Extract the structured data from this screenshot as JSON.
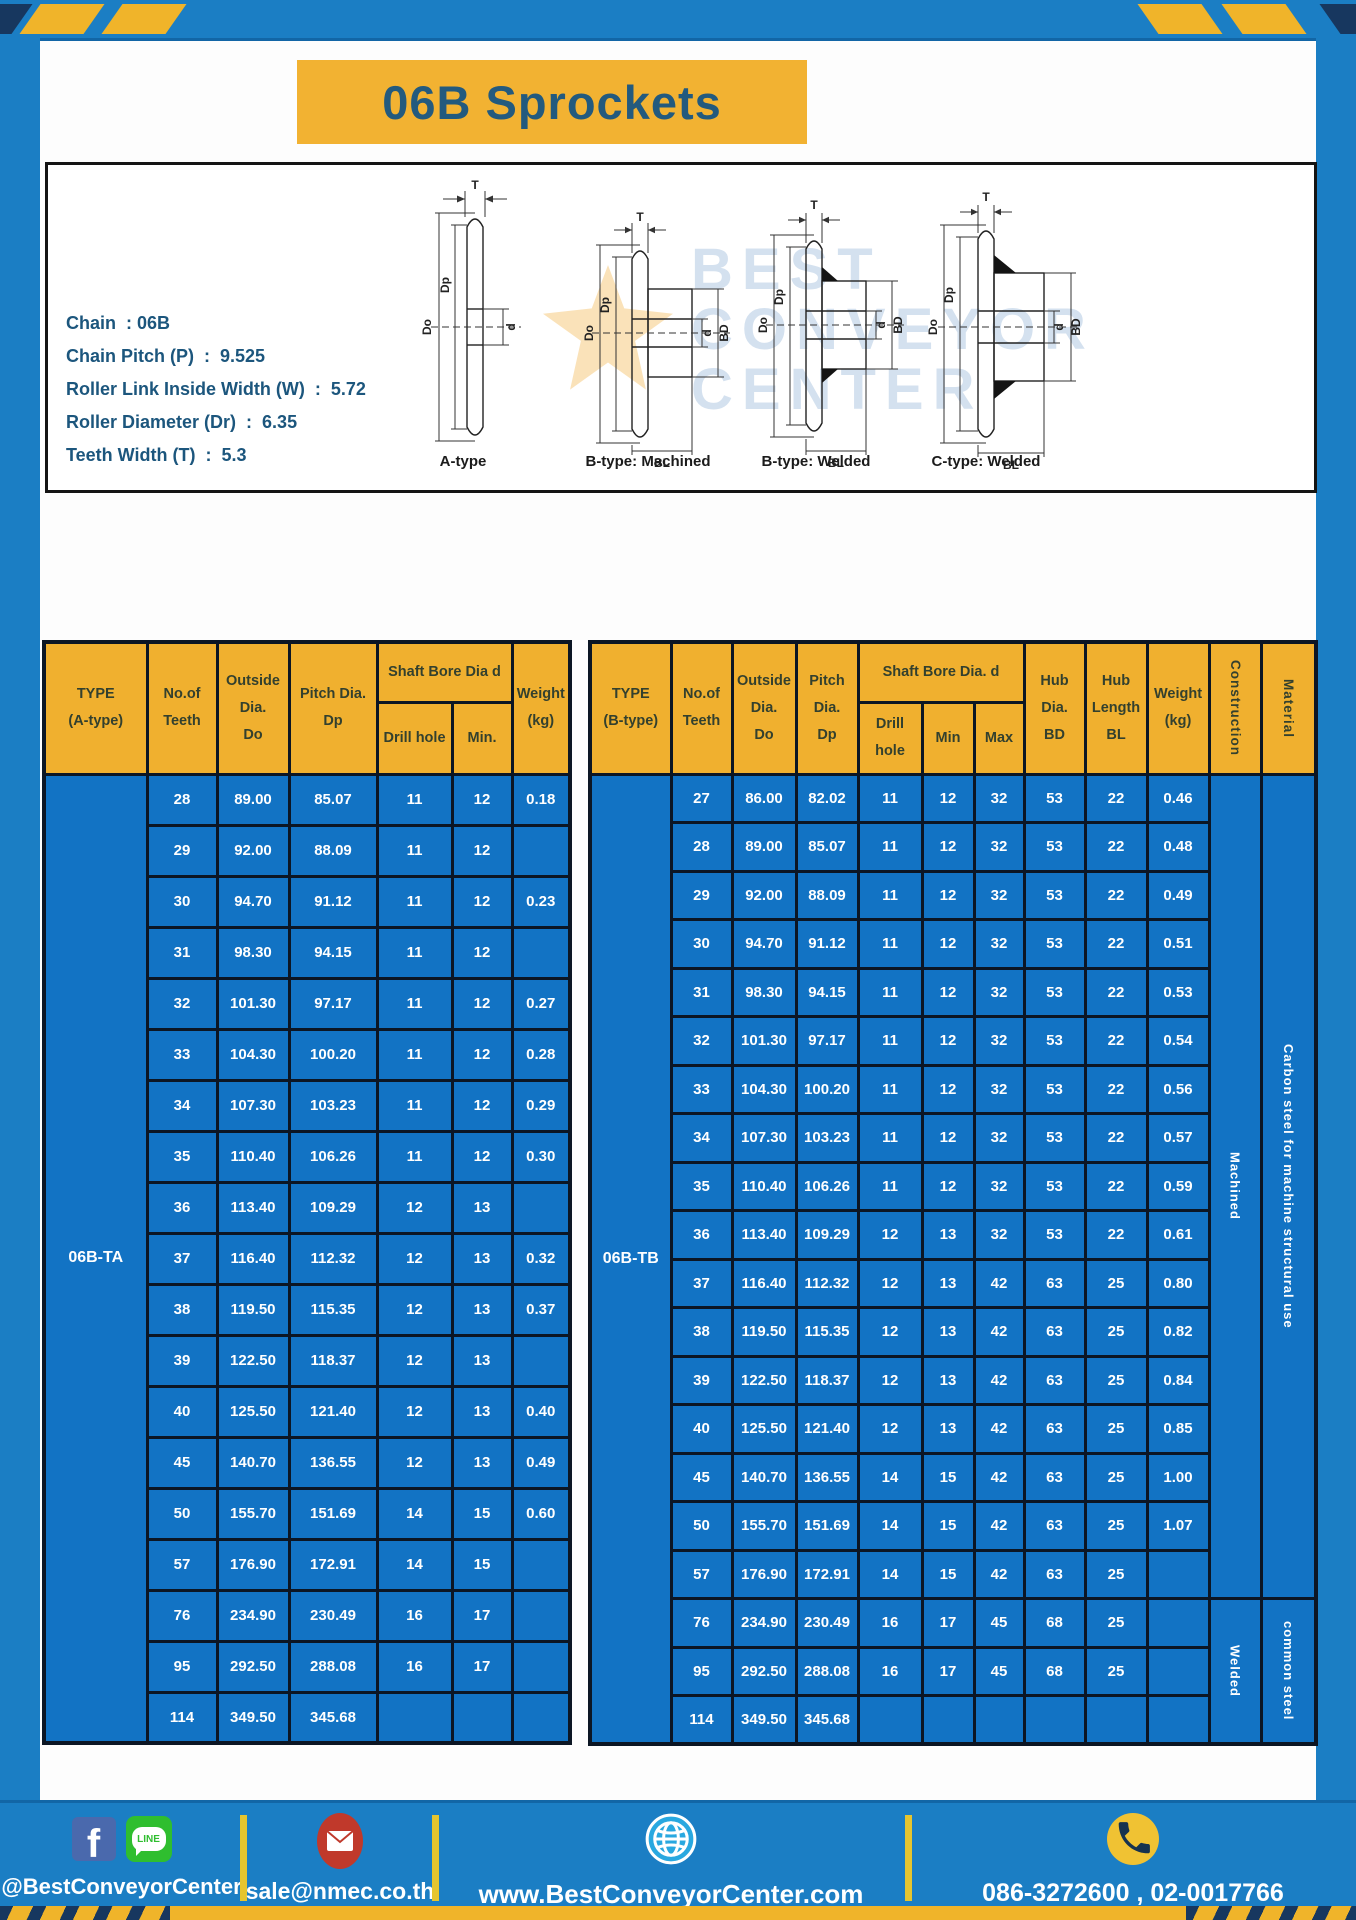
{
  "page": {
    "title": "06B Sprockets"
  },
  "specs": {
    "lines": [
      "Chain  : 06B",
      "Chain Pitch (P)  :  9.525",
      "Roller Link Inside Width (W)  :  5.72",
      "Roller Diameter (Dr)  :  6.35",
      "Teeth Width (T)  :  5.3"
    ]
  },
  "watermark": {
    "line1": "BEST",
    "line2": "CONVEYOR",
    "line3": "CENTER"
  },
  "diagrams": {
    "labels": {
      "t": "T",
      "do": "Do",
      "dp": "Dp",
      "d": "d",
      "bd": "BD",
      "bl": "BL"
    },
    "captions": [
      "A-type",
      "B-type: Machined",
      "B-type: Welded",
      "C-type: Welded"
    ]
  },
  "tables": {
    "a": {
      "type_label": "06B-TA",
      "headers": {
        "type": "TYPE\n(A-type)",
        "teeth": "No.of\nTeeth",
        "outside": "Outside\nDia.\nDo",
        "pitch": "Pitch Dia.\nDp",
        "shaft_bore": "Shaft Bore Dia d",
        "drill": "Drill hole",
        "min": "Min.",
        "weight": "Weight\n(kg)"
      },
      "rows": [
        [
          "28",
          "89.00",
          "85.07",
          "11",
          "12",
          "0.18"
        ],
        [
          "29",
          "92.00",
          "88.09",
          "11",
          "12",
          ""
        ],
        [
          "30",
          "94.70",
          "91.12",
          "11",
          "12",
          "0.23"
        ],
        [
          "31",
          "98.30",
          "94.15",
          "11",
          "12",
          ""
        ],
        [
          "32",
          "101.30",
          "97.17",
          "11",
          "12",
          "0.27"
        ],
        [
          "33",
          "104.30",
          "100.20",
          "11",
          "12",
          "0.28"
        ],
        [
          "34",
          "107.30",
          "103.23",
          "11",
          "12",
          "0.29"
        ],
        [
          "35",
          "110.40",
          "106.26",
          "11",
          "12",
          "0.30"
        ],
        [
          "36",
          "113.40",
          "109.29",
          "12",
          "13",
          ""
        ],
        [
          "37",
          "116.40",
          "112.32",
          "12",
          "13",
          "0.32"
        ],
        [
          "38",
          "119.50",
          "115.35",
          "12",
          "13",
          "0.37"
        ],
        [
          "39",
          "122.50",
          "118.37",
          "12",
          "13",
          ""
        ],
        [
          "40",
          "125.50",
          "121.40",
          "12",
          "13",
          "0.40"
        ],
        [
          "45",
          "140.70",
          "136.55",
          "12",
          "13",
          "0.49"
        ],
        [
          "50",
          "155.70",
          "151.69",
          "14",
          "15",
          "0.60"
        ],
        [
          "57",
          "176.90",
          "172.91",
          "14",
          "15",
          ""
        ],
        [
          "76",
          "234.90",
          "230.49",
          "16",
          "17",
          ""
        ],
        [
          "95",
          "292.50",
          "288.08",
          "16",
          "17",
          ""
        ],
        [
          "114",
          "349.50",
          "345.68",
          "",
          "",
          ""
        ]
      ]
    },
    "b": {
      "type_label": "06B-TB",
      "headers": {
        "type": "TYPE\n(B-type)",
        "teeth": "No.of\nTeeth",
        "outside": "Outside\nDia.\nDo",
        "pitch": "Pitch\nDia.\nDp",
        "shaft_bore": "Shaft Bore Dia. d",
        "drill": "Drill hole",
        "min": "Min",
        "max": "Max",
        "hub_dia": "Hub\nDia.\nBD",
        "hub_len": "Hub\nLength\nBL",
        "weight": "Weight\n(kg)",
        "construction": "Construction",
        "material": "Material"
      },
      "rows": [
        [
          "27",
          "86.00",
          "82.02",
          "11",
          "12",
          "32",
          "53",
          "22",
          "0.46"
        ],
        [
          "28",
          "89.00",
          "85.07",
          "11",
          "12",
          "32",
          "53",
          "22",
          "0.48"
        ],
        [
          "29",
          "92.00",
          "88.09",
          "11",
          "12",
          "32",
          "53",
          "22",
          "0.49"
        ],
        [
          "30",
          "94.70",
          "91.12",
          "11",
          "12",
          "32",
          "53",
          "22",
          "0.51"
        ],
        [
          "31",
          "98.30",
          "94.15",
          "11",
          "12",
          "32",
          "53",
          "22",
          "0.53"
        ],
        [
          "32",
          "101.30",
          "97.17",
          "11",
          "12",
          "32",
          "53",
          "22",
          "0.54"
        ],
        [
          "33",
          "104.30",
          "100.20",
          "11",
          "12",
          "32",
          "53",
          "22",
          "0.56"
        ],
        [
          "34",
          "107.30",
          "103.23",
          "11",
          "12",
          "32",
          "53",
          "22",
          "0.57"
        ],
        [
          "35",
          "110.40",
          "106.26",
          "11",
          "12",
          "32",
          "53",
          "22",
          "0.59"
        ],
        [
          "36",
          "113.40",
          "109.29",
          "12",
          "13",
          "32",
          "53",
          "22",
          "0.61"
        ],
        [
          "37",
          "116.40",
          "112.32",
          "12",
          "13",
          "42",
          "63",
          "25",
          "0.80"
        ],
        [
          "38",
          "119.50",
          "115.35",
          "12",
          "13",
          "42",
          "63",
          "25",
          "0.82"
        ],
        [
          "39",
          "122.50",
          "118.37",
          "12",
          "13",
          "42",
          "63",
          "25",
          "0.84"
        ],
        [
          "40",
          "125.50",
          "121.40",
          "12",
          "13",
          "42",
          "63",
          "25",
          "0.85"
        ],
        [
          "45",
          "140.70",
          "136.55",
          "14",
          "15",
          "42",
          "63",
          "25",
          "1.00"
        ],
        [
          "50",
          "155.70",
          "151.69",
          "14",
          "15",
          "42",
          "63",
          "25",
          "1.07"
        ],
        [
          "57",
          "176.90",
          "172.91",
          "14",
          "15",
          "42",
          "63",
          "25",
          ""
        ],
        [
          "76",
          "234.90",
          "230.49",
          "16",
          "17",
          "45",
          "68",
          "25",
          ""
        ],
        [
          "95",
          "292.50",
          "288.08",
          "16",
          "17",
          "45",
          "68",
          "25",
          ""
        ],
        [
          "114",
          "349.50",
          "345.68",
          "",
          "",
          "",
          "",
          "",
          ""
        ]
      ],
      "construction": [
        {
          "label": "Machined",
          "span": 17
        },
        {
          "label": "Welded",
          "span": 3
        }
      ],
      "material": [
        {
          "label": "Carbon steel for machine structural use",
          "span": 17
        },
        {
          "label": "common steel",
          "span": 3
        }
      ]
    }
  },
  "footer": {
    "handle": "@BestConveyorCenter",
    "line_label": "LINE",
    "email": "sale@nmec.co.th",
    "website": "www.BestConveyorCenter.com",
    "phones": "086-3272600 , 02-0017766",
    "facebook_letter": "f"
  }
}
